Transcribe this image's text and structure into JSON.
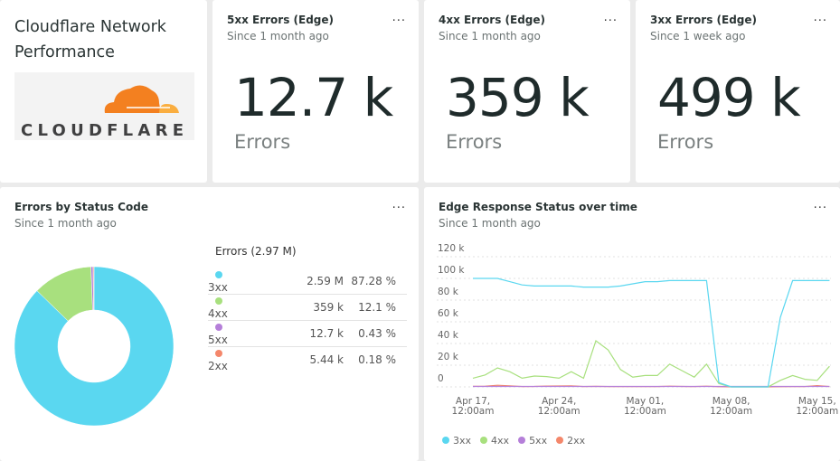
{
  "title_card": {
    "title": "Cloudflare Network Performance",
    "logo_text": "CLOUDFLARE"
  },
  "more_label": "...",
  "billboards": [
    {
      "title": "5xx Errors (Edge)",
      "subtitle": "Since 1 month ago",
      "value": "12.7 k",
      "unit": "Errors"
    },
    {
      "title": "4xx Errors (Edge)",
      "subtitle": "Since 1 month ago",
      "value": "359 k",
      "unit": "Errors"
    },
    {
      "title": "3xx Errors (Edge)",
      "subtitle": "Since 1 week ago",
      "value": "499 k",
      "unit": "Errors"
    }
  ],
  "colors": {
    "3xx": "#5ad7f0",
    "4xx": "#a8e07e",
    "5xx": "#b57fd9",
    "2xx": "#f4876b"
  },
  "chart_data": [
    {
      "type": "pie",
      "title": "Errors by Status Code",
      "subtitle": "Since 1 month ago",
      "donut": true,
      "table_header": "Errors (2.97 M)",
      "rows": [
        {
          "label": "3xx",
          "value": "2.59 M",
          "percent": "87.28 %",
          "share": 87.28,
          "color": "#5ad7f0"
        },
        {
          "label": "4xx",
          "value": "359 k",
          "percent": "12.1 %",
          "share": 12.1,
          "color": "#a8e07e"
        },
        {
          "label": "5xx",
          "value": "12.7 k",
          "percent": "0.43 %",
          "share": 0.43,
          "color": "#b57fd9"
        },
        {
          "label": "2xx",
          "value": "5.44 k",
          "percent": "0.18 %",
          "share": 0.18,
          "color": "#f4876b"
        }
      ]
    },
    {
      "type": "line",
      "title": "Edge Response Status over time",
      "subtitle": "Since 1 month ago",
      "y_ticks": [
        "120 k",
        "100 k",
        "80 k",
        "60 k",
        "40 k",
        "20 k",
        "0"
      ],
      "ylim": [
        0,
        120000
      ],
      "x_ticks": [
        {
          "l1": "Apr 17,",
          "l2": "12:00am"
        },
        {
          "l1": "Apr 24,",
          "l2": "12:00am"
        },
        {
          "l1": "May 01,",
          "l2": "12:00am"
        },
        {
          "l1": "May 08,",
          "l2": "12:00am"
        },
        {
          "l1": "May 15,",
          "l2": "12:00am"
        }
      ],
      "x_start": "Apr 17",
      "x_interval": "1 day",
      "grid": true,
      "legend": "bottom",
      "series": [
        {
          "name": "3xx",
          "color": "#5ad7f0",
          "values": [
            100000,
            100000,
            100000,
            97000,
            94000,
            93000,
            93000,
            93000,
            93000,
            92000,
            92000,
            92000,
            93000,
            95000,
            97000,
            97000,
            98000,
            98000,
            98000,
            98000,
            4000,
            0,
            0,
            0,
            0,
            64000,
            98000,
            98000,
            98000,
            98000
          ]
        },
        {
          "name": "4xx",
          "color": "#a8e07e",
          "values": [
            8000,
            11000,
            17500,
            14000,
            8000,
            10000,
            9500,
            8000,
            14000,
            8000,
            42500,
            34000,
            16000,
            9000,
            10500,
            10500,
            21000,
            15000,
            9000,
            21000,
            3000,
            0,
            0,
            0,
            0,
            6000,
            10500,
            7000,
            6000,
            19000
          ]
        },
        {
          "name": "5xx",
          "color": "#b57fd9",
          "values": [
            400,
            400,
            400,
            400,
            400,
            400,
            400,
            400,
            400,
            400,
            400,
            400,
            400,
            400,
            400,
            400,
            400,
            400,
            400,
            400,
            400,
            400,
            400,
            400,
            400,
            400,
            400,
            400,
            400,
            400
          ]
        },
        {
          "name": "2xx",
          "color": "#f4876b",
          "values": [
            500,
            600,
            1500,
            1000,
            300,
            400,
            800,
            900,
            1000,
            300,
            500,
            300,
            300,
            300,
            300,
            300,
            600,
            400,
            300,
            600,
            200,
            0,
            0,
            0,
            0,
            200,
            300,
            300,
            1200,
            300
          ]
        }
      ]
    }
  ]
}
